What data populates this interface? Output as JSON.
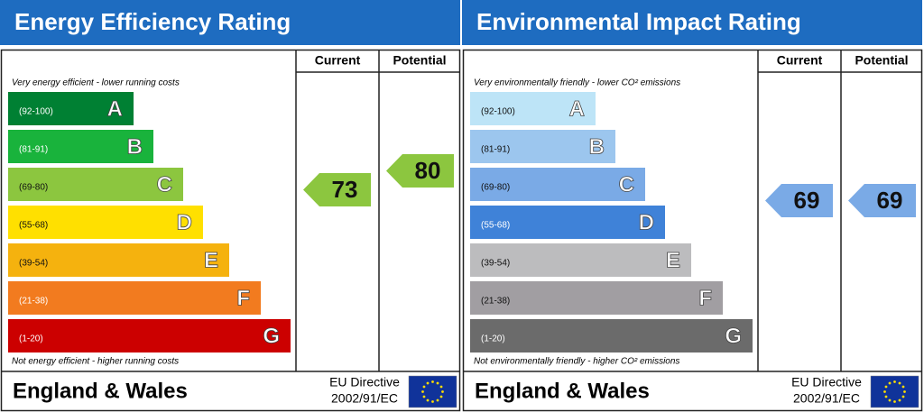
{
  "panels": [
    {
      "title": "Energy Efficiency Rating",
      "columns": [
        "Current",
        "Potential"
      ],
      "top_note": "Very energy efficient - lower running costs",
      "bands": [
        {
          "range": "(92-100)",
          "letter": "A",
          "color": "#008033"
        },
        {
          "range": "(81-91)",
          "letter": "B",
          "color": "#19b33c"
        },
        {
          "range": "(69-80)",
          "letter": "C",
          "color": "#8cc63f"
        },
        {
          "range": "(55-68)",
          "letter": "D",
          "color": "#ffe000"
        },
        {
          "range": "(39-54)",
          "letter": "E",
          "color": "#f5b20e"
        },
        {
          "range": "(21-38)",
          "letter": "F",
          "color": "#f27b1f"
        },
        {
          "range": "(1-20)",
          "letter": "G",
          "color": "#cc0000"
        }
      ],
      "bottom_note": "Not energy efficient - higher running costs",
      "current": 73,
      "current_color": "#8cc63f",
      "potential": 80,
      "potential_color": "#8cc63f",
      "region": "England & Wales",
      "directive": [
        "EU Directive",
        "2002/91/EC"
      ]
    },
    {
      "title": "Environmental Impact Rating",
      "columns": [
        "Current",
        "Potential"
      ],
      "top_note": "Very environmentally friendly - lower CO² emissions",
      "bands": [
        {
          "range": "(92-100)",
          "letter": "A",
          "color": "#bde4f7"
        },
        {
          "range": "(81-91)",
          "letter": "B",
          "color": "#9cc6ee"
        },
        {
          "range": "(69-80)",
          "letter": "C",
          "color": "#7aaae6"
        },
        {
          "range": "(55-68)",
          "letter": "D",
          "color": "#3f82d8"
        },
        {
          "range": "(39-54)",
          "letter": "E",
          "color": "#bcbcbe"
        },
        {
          "range": "(21-38)",
          "letter": "F",
          "color": "#a19ea2"
        },
        {
          "range": "(1-20)",
          "letter": "G",
          "color": "#6b6b6b"
        }
      ],
      "bottom_note": "Not environmentally friendly - higher CO² emissions",
      "current": 69,
      "current_color": "#7aaae6",
      "potential": 69,
      "potential_color": "#7aaae6",
      "region": "England & Wales",
      "directive": [
        "EU Directive",
        "2002/91/EC"
      ]
    }
  ]
}
